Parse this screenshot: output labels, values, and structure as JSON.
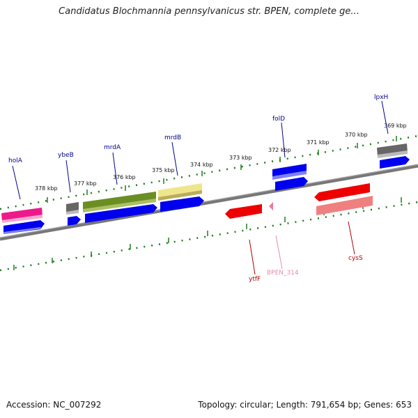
{
  "title": "Candidatus Blochmannia pennsylvanicus str. BPEN, complete ge...",
  "footer": {
    "accession": "Accession: NC_007292",
    "topology": "Topology: circular; Length: 791,654 bp; Genes: 653"
  },
  "colors": {
    "backbone": "#7a7a7a",
    "ruler": "#1e7b1e",
    "gene_blue": "#0000ee",
    "gene_red": "#ee0000",
    "gene_pink": "#f07898",
    "gene_magenta": "#ee1a8a",
    "gene_olive": "#6b8e23",
    "gene_khaki": "#efe68c",
    "gene_gray": "#666666",
    "label_blue": "#00008b",
    "label_red": "#b00000",
    "label_pink": "#e58aa8"
  },
  "ticks": [
    "378 kbp",
    "377 kbp",
    "376 kbp",
    "375 kbp",
    "374 kbp",
    "373 kbp",
    "372 kbp",
    "371 kbp",
    "370 kbp",
    "369 kbp"
  ],
  "gene_labels": [
    "holA",
    "ybeB",
    "mrdA",
    "mrdB",
    "folD",
    "lpxH",
    "ytfF",
    "BPEN_314",
    "cysS"
  ]
}
